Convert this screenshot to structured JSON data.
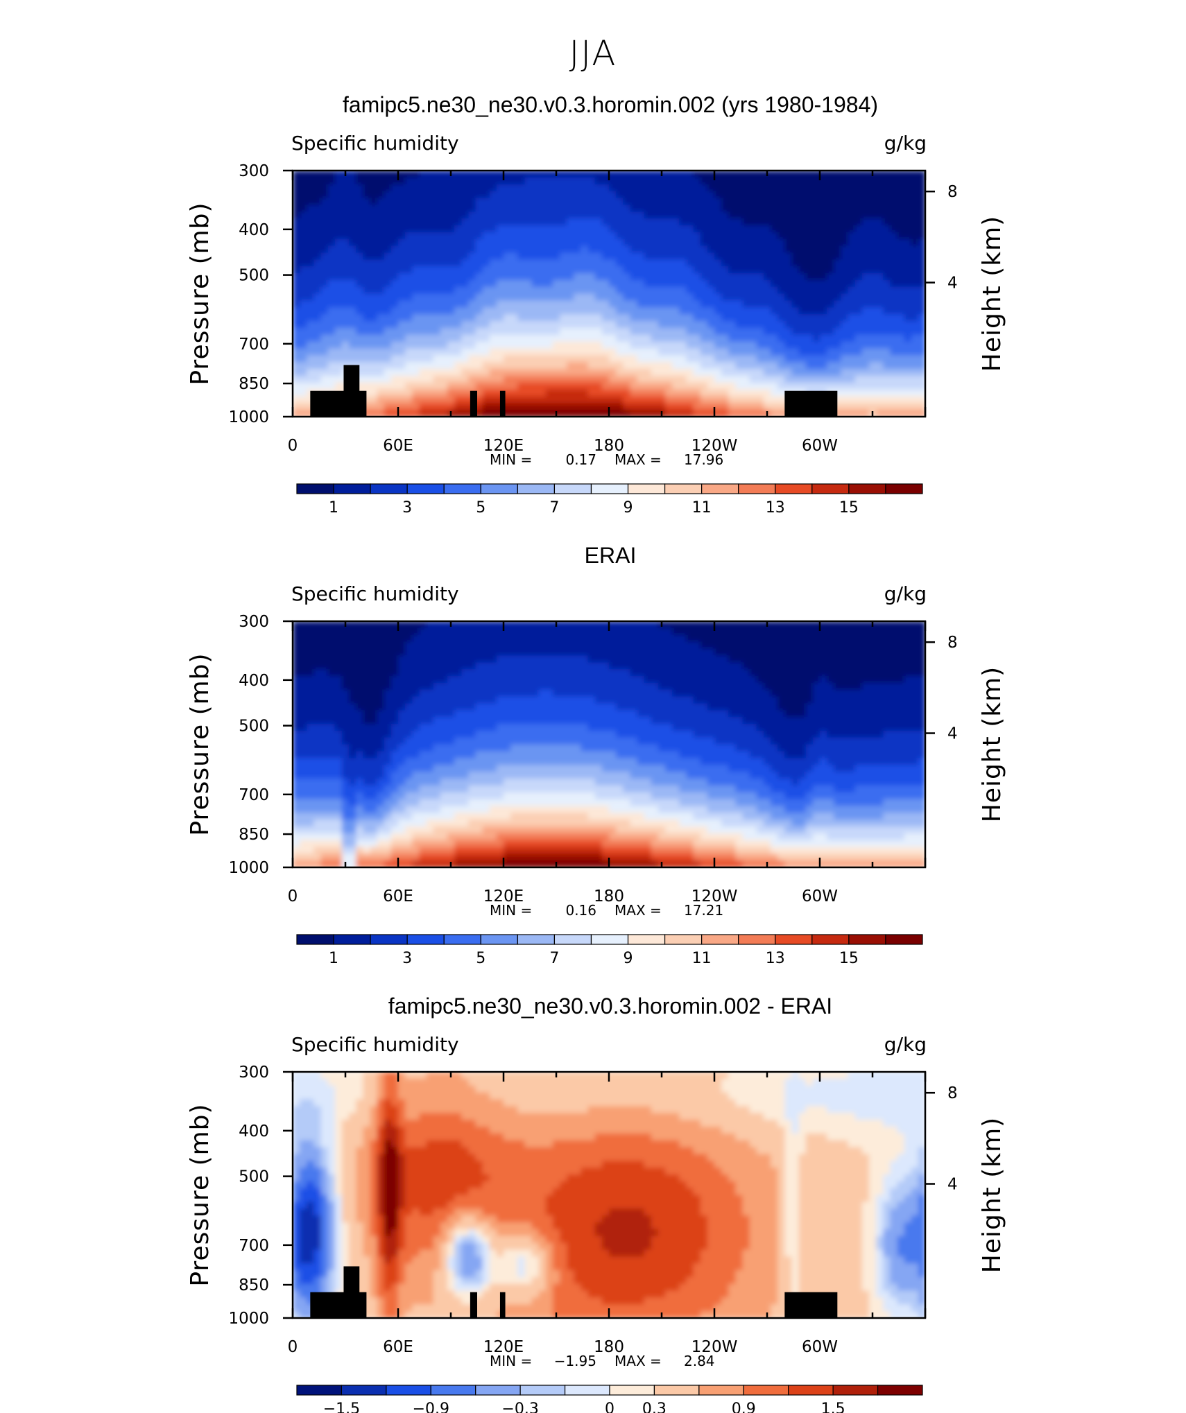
{
  "figure": {
    "title": "JJA"
  },
  "colors": {
    "absolute_palette": [
      "#000f6e",
      "#001e9b",
      "#0a35c4",
      "#1a4fe6",
      "#3a6df0",
      "#6b95f2",
      "#9bb8f5",
      "#c7d8fa",
      "#e6f0fd",
      "#fde8d8",
      "#fbcfb4",
      "#f9a886",
      "#f37c56",
      "#e74b25",
      "#c62a10",
      "#9a0f04",
      "#7a0000"
    ],
    "diff_palette": [
      "#00127a",
      "#0a2fb0",
      "#1a4fe6",
      "#4879ee",
      "#85a6f3",
      "#b4cbf8",
      "#dce8fd",
      "#fdecda",
      "#fbc9a7",
      "#f8a073",
      "#f06d3d",
      "#dc4218",
      "#b0200a",
      "#7d0000"
    ]
  },
  "chart_data": [
    {
      "type": "heatmap",
      "title": "famipc5.ne30_ne30.v0.3.horomin.002 (yrs 1980-1984)",
      "left_label": "Specific humidity",
      "right_label": "g/kg",
      "ylabel": "Pressure (mb)",
      "ylabel_right": "Height (km)",
      "y_ticks": [
        "300",
        "400",
        "500",
        "700",
        "850",
        "1000"
      ],
      "y_ticks_right": [
        "8",
        "4"
      ],
      "x_ticks": [
        "0",
        "60E",
        "120E",
        "180",
        "120W",
        "60W"
      ],
      "min_label": "MIN =",
      "min_value": "0.17",
      "max_label": "MAX =",
      "max_value": "17.96",
      "colorbar_labels": [
        "1",
        "3",
        "5",
        "7",
        "9",
        "11",
        "13",
        "15"
      ]
    },
    {
      "type": "heatmap",
      "title": "ERAI",
      "left_label": "Specific humidity",
      "right_label": "g/kg",
      "ylabel": "Pressure (mb)",
      "ylabel_right": "Height (km)",
      "y_ticks": [
        "300",
        "400",
        "500",
        "700",
        "850",
        "1000"
      ],
      "y_ticks_right": [
        "8",
        "4"
      ],
      "x_ticks": [
        "0",
        "60E",
        "120E",
        "180",
        "120W",
        "60W"
      ],
      "min_label": "MIN =",
      "min_value": "0.16",
      "max_label": "MAX =",
      "max_value": "17.21",
      "colorbar_labels": [
        "1",
        "3",
        "5",
        "7",
        "9",
        "11",
        "13",
        "15"
      ]
    },
    {
      "type": "heatmap",
      "title": "famipc5.ne30_ne30.v0.3.horomin.002 - ERAI",
      "left_label": "Specific humidity",
      "right_label": "g/kg",
      "ylabel": "Pressure (mb)",
      "ylabel_right": "Height (km)",
      "y_ticks": [
        "300",
        "400",
        "500",
        "700",
        "850",
        "1000"
      ],
      "y_ticks_right": [
        "8",
        "4"
      ],
      "x_ticks": [
        "0",
        "60E",
        "120E",
        "180",
        "120W",
        "60W"
      ],
      "min_label": "MIN =",
      "min_value": "−1.95",
      "max_label": "MAX =",
      "max_value": "2.84",
      "colorbar_labels": [
        "−1.5",
        "−0.9",
        "−0.3",
        "0",
        "0.3",
        "0.9",
        "1.5"
      ]
    }
  ]
}
